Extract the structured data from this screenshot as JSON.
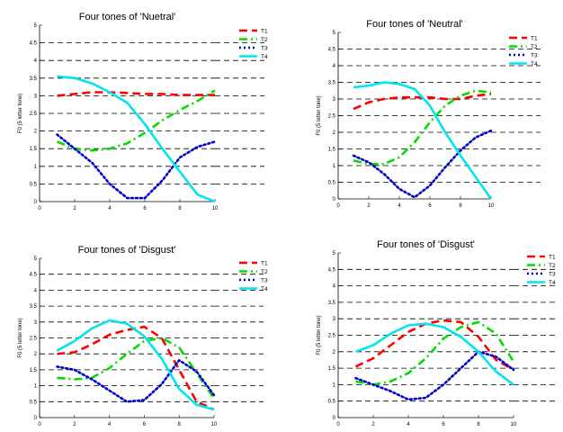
{
  "chart_data": [
    {
      "type": "line",
      "title": "Four tones of  'Nuetral'",
      "ylabel": "F0 (5 letter tone)",
      "xlabel": "",
      "xlim": [
        0,
        10
      ],
      "ylim": [
        0,
        5
      ],
      "xticks": [
        "0",
        "2",
        "4",
        "6",
        "8",
        "10"
      ],
      "yticks": [
        "0",
        "0.5",
        "1",
        "1.5",
        "2",
        "2.5",
        "3",
        "3.5",
        "4",
        "4.5",
        "5"
      ],
      "grid": "horizontal dashed",
      "legend": "top-right outside",
      "x": [
        1,
        2,
        3,
        4,
        5,
        6,
        7,
        8,
        9,
        10
      ],
      "series": [
        {
          "name": "T1",
          "color": "#ff0000",
          "style": "dashed",
          "values": [
            3.0,
            3.05,
            3.1,
            3.1,
            3.08,
            3.05,
            3.05,
            3.02,
            3.02,
            3.02
          ]
        },
        {
          "name": "T2",
          "color": "#00dd00",
          "style": "dashdot",
          "values": [
            1.7,
            1.5,
            1.45,
            1.5,
            1.65,
            1.95,
            2.3,
            2.6,
            2.85,
            3.15
          ]
        },
        {
          "name": "T3",
          "color": "#0000cc",
          "style": "dotted",
          "values": [
            1.9,
            1.5,
            1.1,
            0.5,
            0.1,
            0.1,
            0.6,
            1.25,
            1.55,
            1.7
          ]
        },
        {
          "name": "T4",
          "color": "#00e5ee",
          "style": "solid",
          "values": [
            3.55,
            3.5,
            3.35,
            3.1,
            2.8,
            2.2,
            1.5,
            0.85,
            0.2,
            0.0
          ]
        }
      ]
    },
    {
      "type": "line",
      "title": "Four tones of  'Neutral'",
      "ylabel": "F0 (5 letter tone)",
      "xlabel": "",
      "xlim": [
        0,
        10
      ],
      "ylim": [
        0,
        5
      ],
      "xticks": [
        "0",
        "2",
        "4",
        "6",
        "8",
        "10"
      ],
      "yticks": [
        "0",
        "0.5",
        "1",
        "1.5",
        "2",
        "2.5",
        "3",
        "3.5",
        "4",
        "4.5",
        "5"
      ],
      "grid": "horizontal dashed",
      "legend": "top-right outside",
      "x": [
        1,
        2,
        3,
        4,
        5,
        6,
        7,
        8,
        9,
        10
      ],
      "series": [
        {
          "name": "T1",
          "color": "#ff0000",
          "style": "dashed",
          "values": [
            2.7,
            2.9,
            3.0,
            3.05,
            3.05,
            3.05,
            3.0,
            3.0,
            3.1,
            3.15
          ]
        },
        {
          "name": "T2",
          "color": "#00dd00",
          "style": "dashdot",
          "values": [
            1.15,
            1.05,
            1.05,
            1.25,
            1.7,
            2.3,
            2.8,
            3.1,
            3.25,
            3.2
          ]
        },
        {
          "name": "T3",
          "color": "#0000cc",
          "style": "dotted",
          "values": [
            1.3,
            1.1,
            0.75,
            0.3,
            0.05,
            0.4,
            0.95,
            1.45,
            1.85,
            2.05
          ]
        },
        {
          "name": "T4",
          "color": "#00e5ee",
          "style": "solid",
          "values": [
            3.35,
            3.4,
            3.5,
            3.45,
            3.3,
            2.8,
            2.0,
            1.3,
            0.65,
            0.0
          ]
        }
      ]
    },
    {
      "type": "line",
      "title": "Four tones of  'Disgust'",
      "ylabel": "F0 (5 letter tone)",
      "xlabel": "",
      "xlim": [
        0,
        10
      ],
      "ylim": [
        0,
        5
      ],
      "xticks": [
        "0",
        "2",
        "4",
        "6",
        "8",
        "10"
      ],
      "yticks": [
        "0",
        "0.5",
        "1",
        "1.5",
        "2",
        "2.5",
        "3",
        "3.5",
        "4",
        "4.5",
        "5"
      ],
      "grid": "horizontal dashed",
      "legend": "top-right outside",
      "x": [
        1,
        2,
        3,
        4,
        5,
        6,
        7,
        8,
        9,
        10
      ],
      "series": [
        {
          "name": "T1",
          "color": "#ff0000",
          "style": "dashed",
          "values": [
            2.0,
            2.05,
            2.3,
            2.6,
            2.75,
            2.85,
            2.5,
            1.5,
            0.5,
            0.25
          ]
        },
        {
          "name": "T2",
          "color": "#00dd00",
          "style": "dashdot",
          "values": [
            1.25,
            1.2,
            1.25,
            1.55,
            2.0,
            2.4,
            2.5,
            2.2,
            1.4,
            0.6
          ]
        },
        {
          "name": "T3",
          "color": "#0000cc",
          "style": "dotted",
          "values": [
            1.6,
            1.5,
            1.2,
            0.85,
            0.5,
            0.55,
            1.05,
            1.8,
            1.45,
            0.7
          ]
        },
        {
          "name": "T4",
          "color": "#00e5ee",
          "style": "solid",
          "values": [
            2.1,
            2.4,
            2.8,
            3.05,
            2.95,
            2.55,
            1.85,
            0.9,
            0.4,
            0.25
          ]
        }
      ]
    },
    {
      "type": "line",
      "title": "Four tones of  'Disgust'",
      "ylabel": "F0 (5 letter tone)",
      "xlabel": "",
      "xlim": [
        0,
        10
      ],
      "ylim": [
        0,
        5
      ],
      "xticks": [
        "0",
        "2",
        "4",
        "6",
        "8",
        "10"
      ],
      "yticks": [
        "0",
        "0.5",
        "1",
        "1.5",
        "2",
        "2.5",
        "3",
        "3.5",
        "4",
        "4.5",
        "5"
      ],
      "grid": "horizontal dashed",
      "legend": "top-right outside",
      "x": [
        1,
        2,
        3,
        4,
        5,
        6,
        7,
        8,
        9,
        10
      ],
      "series": [
        {
          "name": "T1",
          "color": "#ff0000",
          "style": "dashed",
          "values": [
            1.55,
            1.8,
            2.2,
            2.6,
            2.85,
            2.95,
            2.9,
            2.45,
            1.75,
            1.45
          ]
        },
        {
          "name": "T2",
          "color": "#00dd00",
          "style": "dashdot",
          "values": [
            1.1,
            1.0,
            1.1,
            1.35,
            1.8,
            2.4,
            2.75,
            2.9,
            2.55,
            1.7
          ]
        },
        {
          "name": "T3",
          "color": "#0000cc",
          "style": "dotted",
          "values": [
            1.2,
            1.0,
            0.8,
            0.55,
            0.6,
            1.0,
            1.5,
            2.0,
            1.85,
            1.45
          ]
        },
        {
          "name": "T4",
          "color": "#00e5ee",
          "style": "solid",
          "values": [
            2.0,
            2.2,
            2.55,
            2.8,
            2.85,
            2.75,
            2.45,
            2.0,
            1.4,
            1.0
          ]
        }
      ]
    }
  ]
}
